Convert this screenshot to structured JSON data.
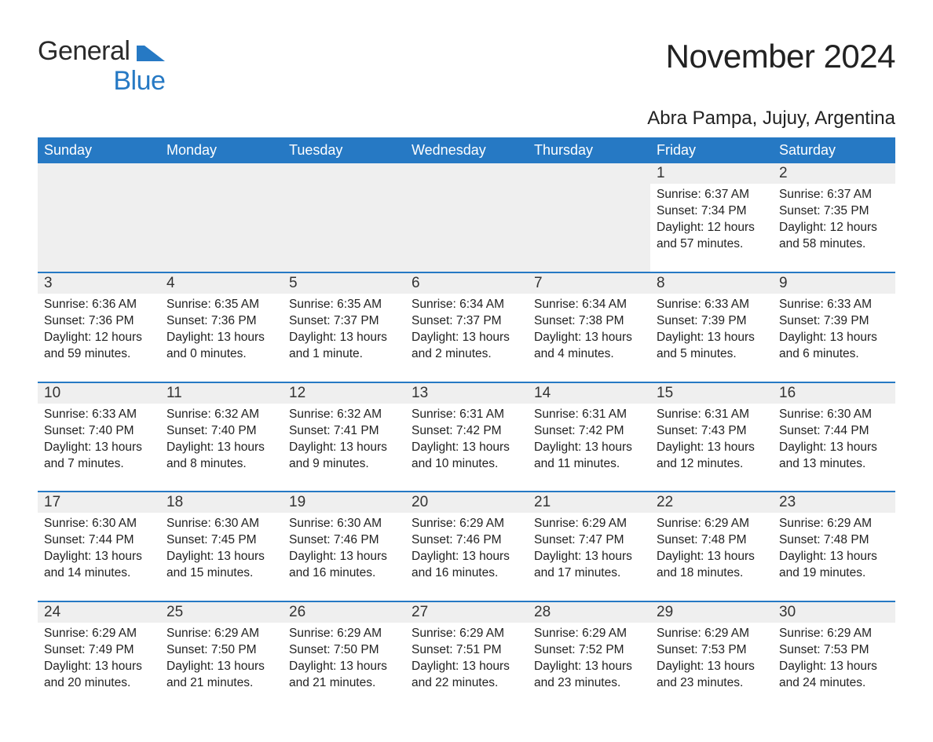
{
  "brand": {
    "line1": "General",
    "line2": "Blue",
    "logo_color": "#2679c4",
    "text_color": "#2a2a2a"
  },
  "title": "November 2024",
  "subtitle": "Abra Pampa, Jujuy, Argentina",
  "colors": {
    "header_bg": "#2679c4",
    "header_fg": "#ffffff",
    "row_border": "#2679c4",
    "daynum_bg": "#efefef",
    "page_bg": "#ffffff",
    "text": "#222222"
  },
  "weekdays": [
    "Sunday",
    "Monday",
    "Tuesday",
    "Wednesday",
    "Thursday",
    "Friday",
    "Saturday"
  ],
  "weeks": [
    [
      null,
      null,
      null,
      null,
      null,
      {
        "n": "1",
        "sunrise": "Sunrise: 6:37 AM",
        "sunset": "Sunset: 7:34 PM",
        "daylight": "Daylight: 12 hours and 57 minutes."
      },
      {
        "n": "2",
        "sunrise": "Sunrise: 6:37 AM",
        "sunset": "Sunset: 7:35 PM",
        "daylight": "Daylight: 12 hours and 58 minutes."
      }
    ],
    [
      {
        "n": "3",
        "sunrise": "Sunrise: 6:36 AM",
        "sunset": "Sunset: 7:36 PM",
        "daylight": "Daylight: 12 hours and 59 minutes."
      },
      {
        "n": "4",
        "sunrise": "Sunrise: 6:35 AM",
        "sunset": "Sunset: 7:36 PM",
        "daylight": "Daylight: 13 hours and 0 minutes."
      },
      {
        "n": "5",
        "sunrise": "Sunrise: 6:35 AM",
        "sunset": "Sunset: 7:37 PM",
        "daylight": "Daylight: 13 hours and 1 minute."
      },
      {
        "n": "6",
        "sunrise": "Sunrise: 6:34 AM",
        "sunset": "Sunset: 7:37 PM",
        "daylight": "Daylight: 13 hours and 2 minutes."
      },
      {
        "n": "7",
        "sunrise": "Sunrise: 6:34 AM",
        "sunset": "Sunset: 7:38 PM",
        "daylight": "Daylight: 13 hours and 4 minutes."
      },
      {
        "n": "8",
        "sunrise": "Sunrise: 6:33 AM",
        "sunset": "Sunset: 7:39 PM",
        "daylight": "Daylight: 13 hours and 5 minutes."
      },
      {
        "n": "9",
        "sunrise": "Sunrise: 6:33 AM",
        "sunset": "Sunset: 7:39 PM",
        "daylight": "Daylight: 13 hours and 6 minutes."
      }
    ],
    [
      {
        "n": "10",
        "sunrise": "Sunrise: 6:33 AM",
        "sunset": "Sunset: 7:40 PM",
        "daylight": "Daylight: 13 hours and 7 minutes."
      },
      {
        "n": "11",
        "sunrise": "Sunrise: 6:32 AM",
        "sunset": "Sunset: 7:40 PM",
        "daylight": "Daylight: 13 hours and 8 minutes."
      },
      {
        "n": "12",
        "sunrise": "Sunrise: 6:32 AM",
        "sunset": "Sunset: 7:41 PM",
        "daylight": "Daylight: 13 hours and 9 minutes."
      },
      {
        "n": "13",
        "sunrise": "Sunrise: 6:31 AM",
        "sunset": "Sunset: 7:42 PM",
        "daylight": "Daylight: 13 hours and 10 minutes."
      },
      {
        "n": "14",
        "sunrise": "Sunrise: 6:31 AM",
        "sunset": "Sunset: 7:42 PM",
        "daylight": "Daylight: 13 hours and 11 minutes."
      },
      {
        "n": "15",
        "sunrise": "Sunrise: 6:31 AM",
        "sunset": "Sunset: 7:43 PM",
        "daylight": "Daylight: 13 hours and 12 minutes."
      },
      {
        "n": "16",
        "sunrise": "Sunrise: 6:30 AM",
        "sunset": "Sunset: 7:44 PM",
        "daylight": "Daylight: 13 hours and 13 minutes."
      }
    ],
    [
      {
        "n": "17",
        "sunrise": "Sunrise: 6:30 AM",
        "sunset": "Sunset: 7:44 PM",
        "daylight": "Daylight: 13 hours and 14 minutes."
      },
      {
        "n": "18",
        "sunrise": "Sunrise: 6:30 AM",
        "sunset": "Sunset: 7:45 PM",
        "daylight": "Daylight: 13 hours and 15 minutes."
      },
      {
        "n": "19",
        "sunrise": "Sunrise: 6:30 AM",
        "sunset": "Sunset: 7:46 PM",
        "daylight": "Daylight: 13 hours and 16 minutes."
      },
      {
        "n": "20",
        "sunrise": "Sunrise: 6:29 AM",
        "sunset": "Sunset: 7:46 PM",
        "daylight": "Daylight: 13 hours and 16 minutes."
      },
      {
        "n": "21",
        "sunrise": "Sunrise: 6:29 AM",
        "sunset": "Sunset: 7:47 PM",
        "daylight": "Daylight: 13 hours and 17 minutes."
      },
      {
        "n": "22",
        "sunrise": "Sunrise: 6:29 AM",
        "sunset": "Sunset: 7:48 PM",
        "daylight": "Daylight: 13 hours and 18 minutes."
      },
      {
        "n": "23",
        "sunrise": "Sunrise: 6:29 AM",
        "sunset": "Sunset: 7:48 PM",
        "daylight": "Daylight: 13 hours and 19 minutes."
      }
    ],
    [
      {
        "n": "24",
        "sunrise": "Sunrise: 6:29 AM",
        "sunset": "Sunset: 7:49 PM",
        "daylight": "Daylight: 13 hours and 20 minutes."
      },
      {
        "n": "25",
        "sunrise": "Sunrise: 6:29 AM",
        "sunset": "Sunset: 7:50 PM",
        "daylight": "Daylight: 13 hours and 21 minutes."
      },
      {
        "n": "26",
        "sunrise": "Sunrise: 6:29 AM",
        "sunset": "Sunset: 7:50 PM",
        "daylight": "Daylight: 13 hours and 21 minutes."
      },
      {
        "n": "27",
        "sunrise": "Sunrise: 6:29 AM",
        "sunset": "Sunset: 7:51 PM",
        "daylight": "Daylight: 13 hours and 22 minutes."
      },
      {
        "n": "28",
        "sunrise": "Sunrise: 6:29 AM",
        "sunset": "Sunset: 7:52 PM",
        "daylight": "Daylight: 13 hours and 23 minutes."
      },
      {
        "n": "29",
        "sunrise": "Sunrise: 6:29 AM",
        "sunset": "Sunset: 7:53 PM",
        "daylight": "Daylight: 13 hours and 23 minutes."
      },
      {
        "n": "30",
        "sunrise": "Sunrise: 6:29 AM",
        "sunset": "Sunset: 7:53 PM",
        "daylight": "Daylight: 13 hours and 24 minutes."
      }
    ]
  ]
}
